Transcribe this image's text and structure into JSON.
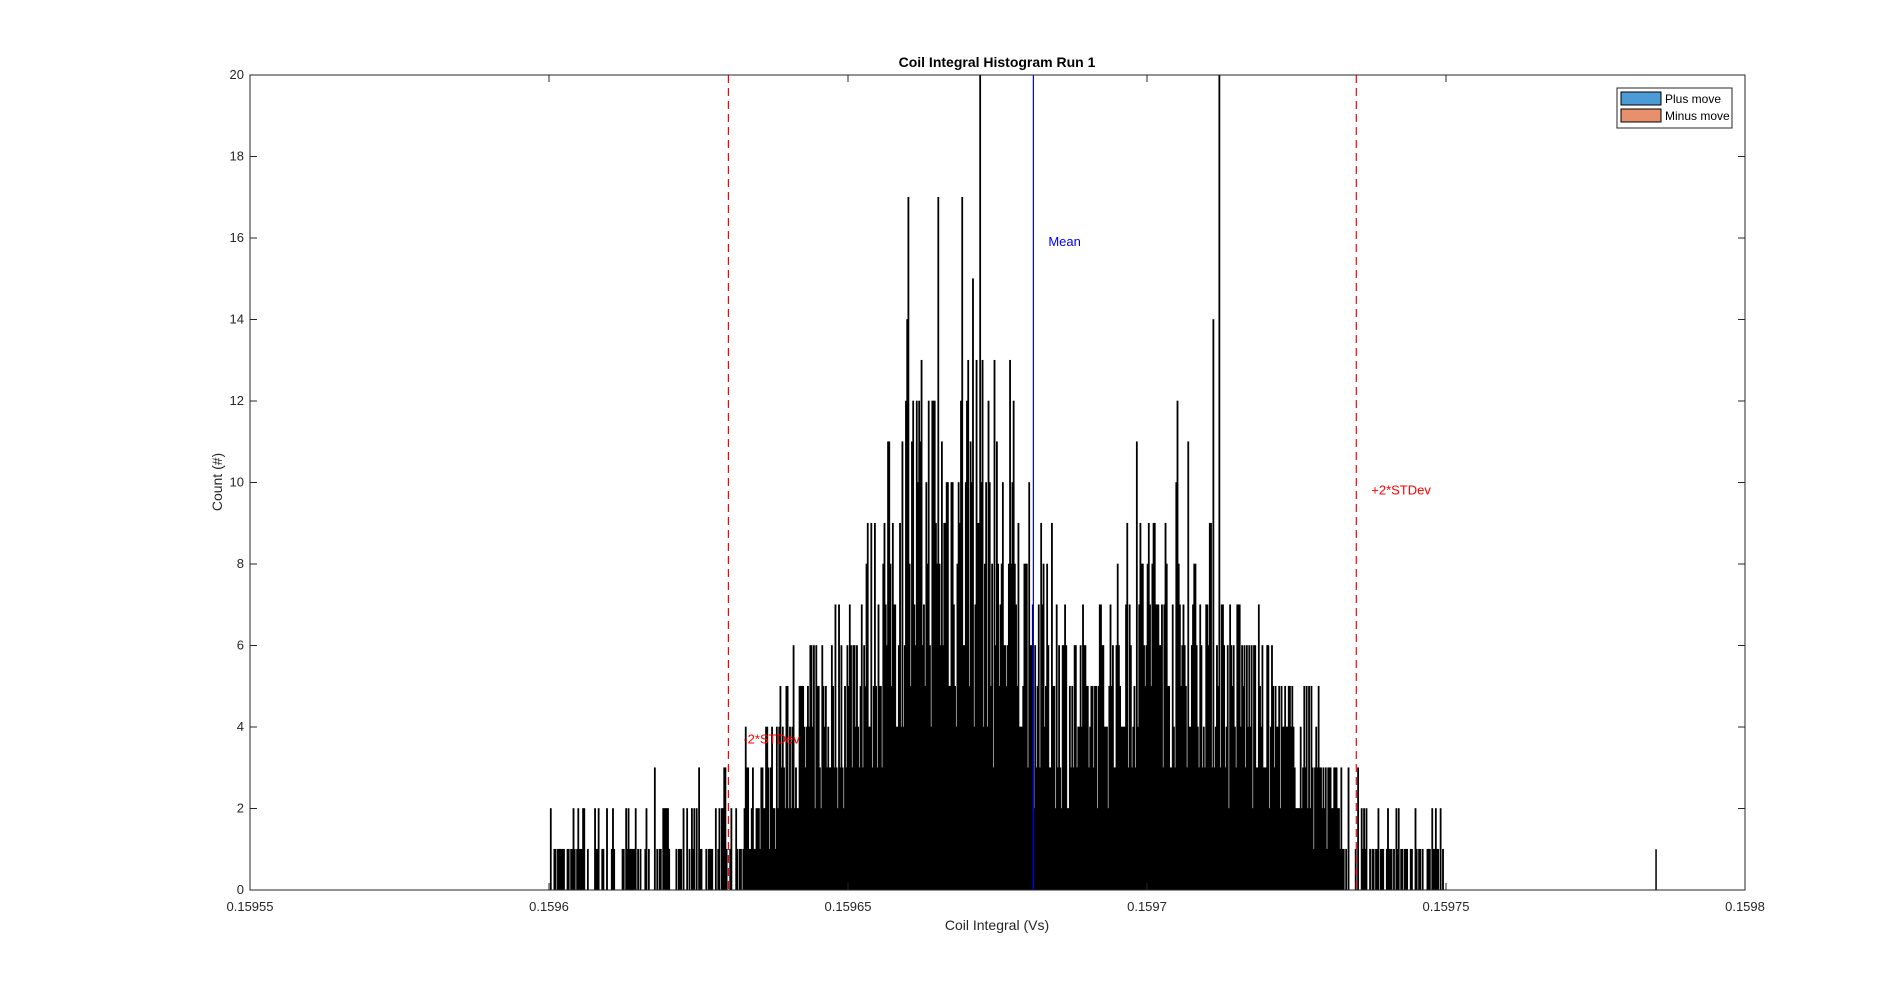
{
  "chart_data": {
    "type": "bar",
    "title": "Coil Integral Histogram Run 1",
    "xlabel": "Coil Integral (Vs)",
    "ylabel": "Count (#)",
    "xlim": [
      0.15955,
      0.1598
    ],
    "ylim": [
      0,
      20
    ],
    "xticks": [
      0.15955,
      0.1596,
      0.15965,
      0.1597,
      0.15975,
      0.1598
    ],
    "xtick_labels": [
      "0.15955",
      "0.1596",
      "0.15965",
      "0.1597",
      "0.15975",
      "0.1598"
    ],
    "yticks": [
      0,
      2,
      4,
      6,
      8,
      10,
      12,
      14,
      16,
      18,
      20
    ],
    "ytick_labels": [
      "0",
      "2",
      "4",
      "6",
      "8",
      "10",
      "12",
      "14",
      "16",
      "18",
      "20"
    ],
    "grid": false,
    "legend": {
      "placement": "top-right",
      "entries": [
        {
          "label": "Plus move",
          "color": "#4d9bd6"
        },
        {
          "label": "Minus move",
          "color": "#e8906b"
        }
      ]
    },
    "series": [
      {
        "name": "Plus move",
        "color": "#4d9bd6",
        "edge_color": "#000000",
        "bin_width": 2e-07,
        "x_start": 0.1596,
        "counts_approx": [
          {
            "x": 0.1596,
            "y": 1
          },
          {
            "x": 0.15961,
            "y": 1
          },
          {
            "x": 0.15962,
            "y": 2
          },
          {
            "x": 0.15963,
            "y": 2
          },
          {
            "x": 0.15964,
            "y": 4
          },
          {
            "x": 0.15965,
            "y": 6
          },
          {
            "x": 0.15966,
            "y": 10
          },
          {
            "x": 0.15967,
            "y": 11
          },
          {
            "x": 0.15968,
            "y": 7
          },
          {
            "x": 0.15969,
            "y": 5
          },
          {
            "x": 0.1597,
            "y": 8
          },
          {
            "x": 0.15971,
            "y": 7
          },
          {
            "x": 0.15972,
            "y": 5
          },
          {
            "x": 0.15973,
            "y": 3
          },
          {
            "x": 0.15974,
            "y": 1
          },
          {
            "x": 0.15975,
            "y": 1
          },
          {
            "x": 0.15978,
            "y": 1
          }
        ],
        "peaks": [
          {
            "x": 0.159672,
            "y": 20
          },
          {
            "x": 0.159712,
            "y": 20
          },
          {
            "x": 0.15966,
            "y": 17
          },
          {
            "x": 0.159665,
            "y": 17
          },
          {
            "x": 0.159669,
            "y": 17
          },
          {
            "x": 0.159711,
            "y": 14
          },
          {
            "x": 0.159677,
            "y": 13
          },
          {
            "x": 0.159705,
            "y": 12
          },
          {
            "x": 0.159711,
            "y": 12
          },
          {
            "x": 0.159785,
            "y": 1
          }
        ]
      },
      {
        "name": "Minus move",
        "color": "#e8906b",
        "edge_color": "#000000"
      }
    ],
    "reference_lines": [
      {
        "label": "Mean",
        "x": 0.159681,
        "color": "#0000ff",
        "style": "solid"
      },
      {
        "label": "-2*STDev",
        "x": 0.15963,
        "color": "#ff0000",
        "style": "dashed"
      },
      {
        "label": "+2*STDev",
        "x": 0.159735,
        "color": "#ff0000",
        "style": "dashed"
      }
    ]
  }
}
